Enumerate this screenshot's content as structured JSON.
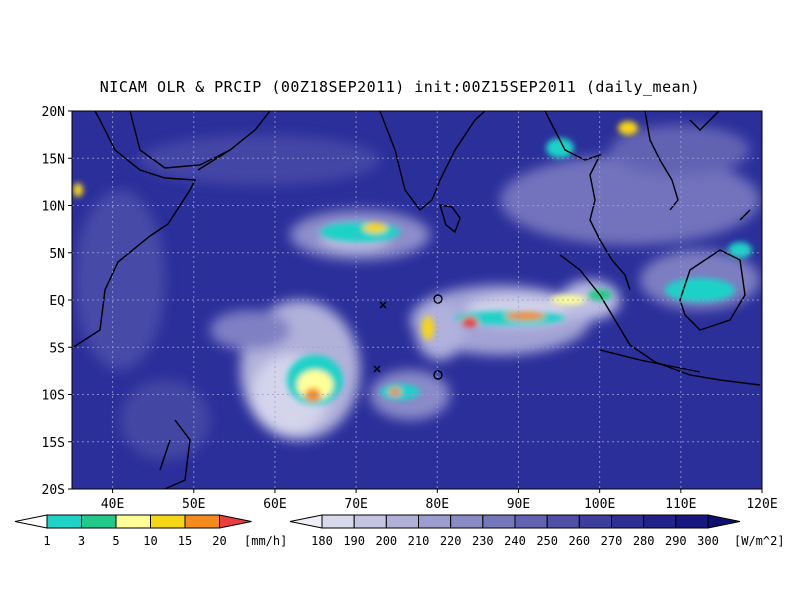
{
  "title": "NICAM OLR & PRCIP (00Z18SEP2011) init:00Z15SEP2011 (daily_mean)",
  "map": {
    "lat_labels": [
      "20N",
      "15N",
      "10N",
      "5N",
      "EQ",
      "5S",
      "10S",
      "15S",
      "20S"
    ],
    "lon_labels": [
      "40E",
      "50E",
      "60E",
      "70E",
      "80E",
      "90E",
      "100E",
      "110E",
      "120E"
    ],
    "lon_range": [
      35,
      120
    ],
    "lat_range": [
      -20,
      20
    ],
    "background_color": "#2b2f9a"
  },
  "precip_colorbar": {
    "ticks": [
      "1",
      "3",
      "5",
      "10",
      "15",
      "20"
    ],
    "unit": "[mm/h]",
    "colors": [
      "#1fd2c8",
      "#22c98a",
      "#ffff99",
      "#f5d619",
      "#f58a1e",
      "#e8403f"
    ]
  },
  "olr_colorbar": {
    "ticks": [
      "180",
      "190",
      "200",
      "210",
      "220",
      "230",
      "240",
      "250",
      "260",
      "270",
      "280",
      "290",
      "300"
    ],
    "unit": "[W/m^2]",
    "colors": [
      "#eeeef6",
      "#d9d9ec",
      "#c5c5e2",
      "#b1b1d8",
      "#9d9dcf",
      "#8a8ac5",
      "#7676bb",
      "#6262b0",
      "#4f4fa6",
      "#3e3e9c",
      "#2e2e93",
      "#22228a",
      "#17177f",
      "#0f0f70"
    ]
  }
}
